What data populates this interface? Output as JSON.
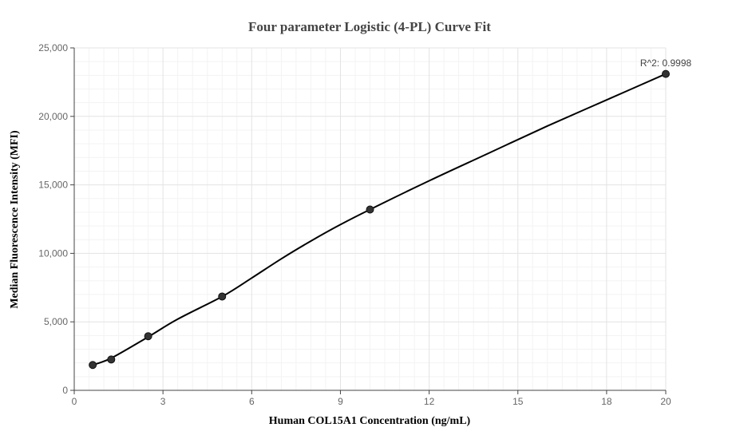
{
  "chart_data": {
    "type": "scatter",
    "title": "Four parameter Logistic (4-PL) Curve Fit",
    "xlabel": "Human COL15A1 Concentration (ng/mL)",
    "ylabel": "Median Fluorescence Intensity (MFI)",
    "xlim": [
      0,
      20
    ],
    "ylim": [
      0,
      25000
    ],
    "x_ticks": [
      0,
      3,
      6,
      9,
      12,
      15,
      18,
      20
    ],
    "x_tick_labels": [
      "0",
      "3",
      "6",
      "9",
      "12",
      "15",
      "18",
      "20"
    ],
    "y_ticks": [
      0,
      5000,
      10000,
      15000,
      20000,
      25000
    ],
    "y_tick_labels": [
      "0",
      "5,000",
      "10,000",
      "15,000",
      "20,000",
      "25,000"
    ],
    "grid": true,
    "series": [
      {
        "x": [
          0.625,
          1.25,
          2.5,
          5,
          10,
          20
        ],
        "y": [
          1850,
          2250,
          3950,
          6850,
          13200,
          23100
        ],
        "color": "#333333"
      }
    ],
    "fit_curve": {
      "x": [
        0.625,
        1.25,
        2.5,
        3.5,
        5,
        6,
        7,
        8,
        9,
        10,
        12,
        14,
        16,
        18,
        20
      ],
      "y": [
        1850,
        2350,
        3900,
        5200,
        6850,
        8200,
        9600,
        10900,
        12100,
        13200,
        15300,
        17300,
        19300,
        21200,
        23100
      ],
      "color": "#000000"
    },
    "annotation": "R^2: 0.9998"
  }
}
